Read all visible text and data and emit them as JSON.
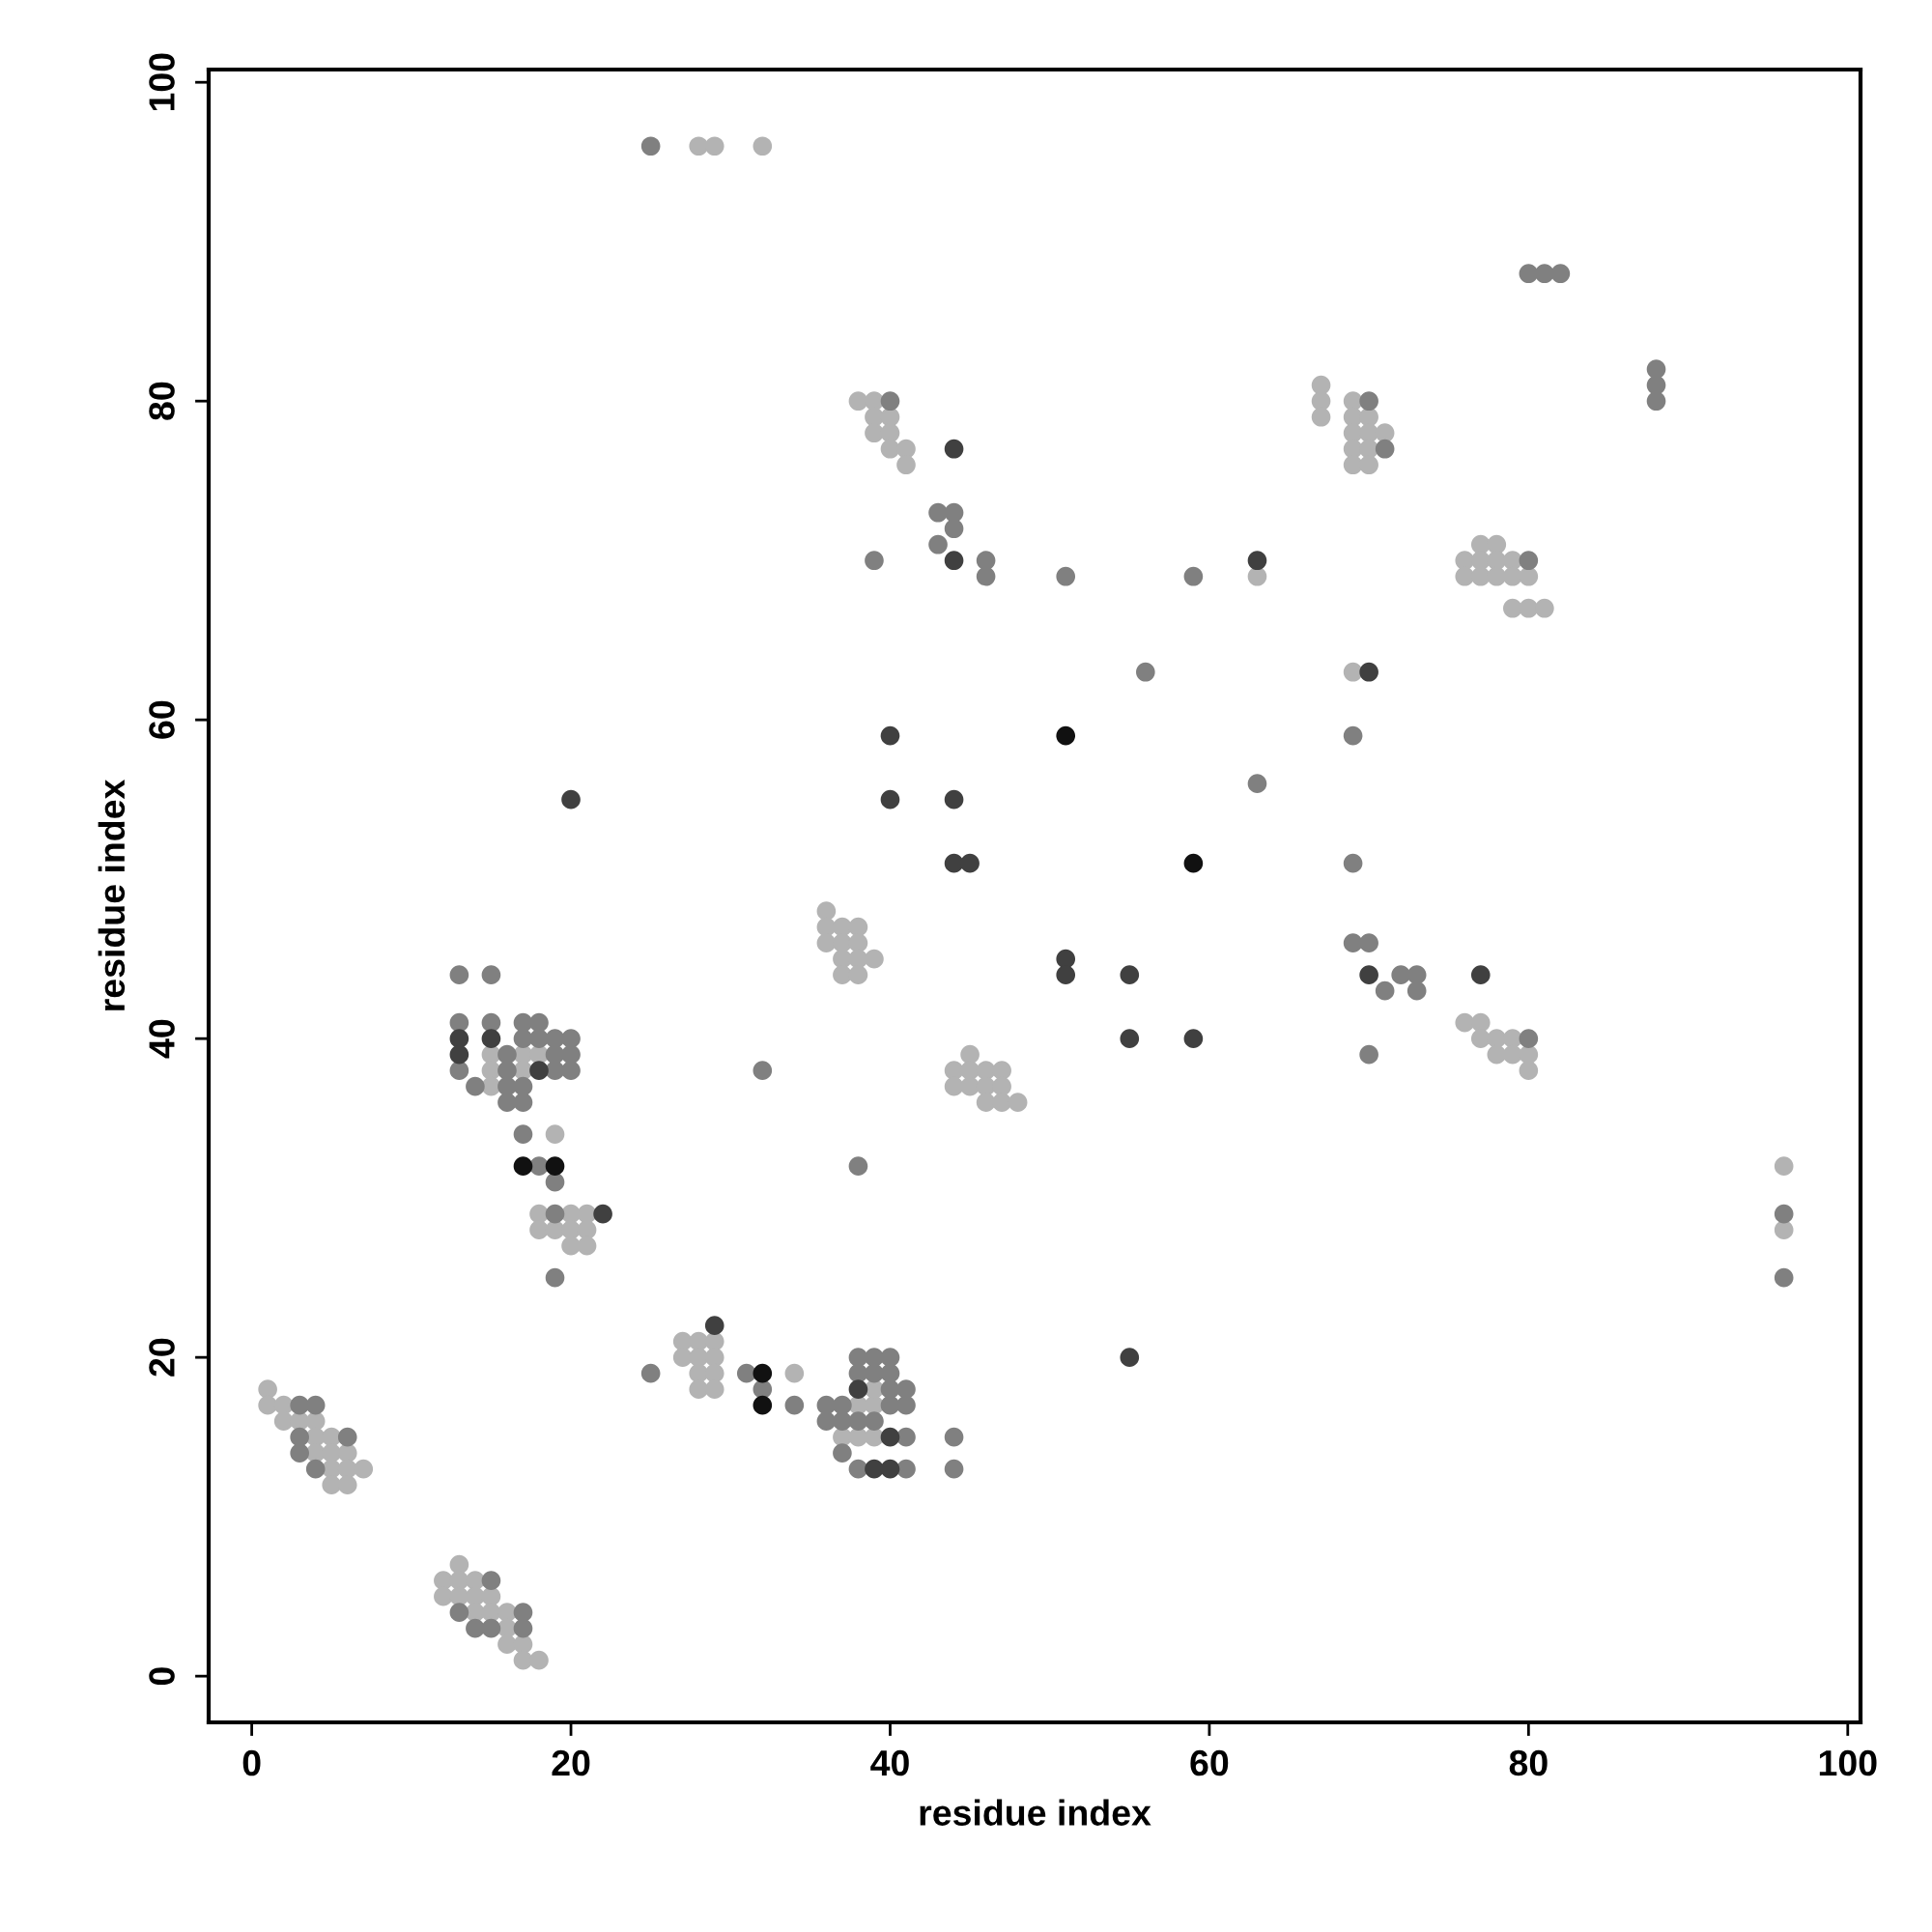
{
  "chart_data": {
    "type": "scatter",
    "xlabel": "residue index",
    "ylabel": "residue index",
    "xlim": [
      -2.7,
      100.8
    ],
    "ylim": [
      -2.9,
      100.8
    ],
    "xticks": [
      0,
      20,
      40,
      60,
      80,
      100
    ],
    "yticks": [
      0,
      20,
      40,
      60,
      80,
      100
    ],
    "grid": false,
    "legend": false,
    "marker": "circle",
    "series": [
      {
        "color": "#b3b3b3",
        "x": [
          1,
          1,
          2,
          2,
          3,
          4,
          4,
          5,
          4,
          5,
          6,
          5,
          6,
          7,
          5,
          6,
          13,
          12,
          13,
          14,
          12,
          13,
          14,
          15,
          14,
          15,
          16,
          16,
          16,
          17,
          17,
          18,
          15,
          17,
          18,
          15,
          17,
          15,
          19,
          18,
          20,
          21,
          18,
          19,
          20,
          21,
          20,
          21,
          36,
          36,
          37,
          38,
          36,
          37,
          38,
          37,
          38,
          39,
          37,
          38,
          45,
          44,
          45,
          46,
          47,
          44,
          45,
          46,
          47,
          46,
          47,
          48,
          27,
          28,
          29,
          27,
          28,
          29,
          28,
          29,
          34,
          28,
          29,
          38,
          39,
          39,
          37,
          38,
          39,
          38,
          39,
          39,
          40,
          39,
          40,
          40,
          41,
          41,
          63,
          67,
          67,
          67,
          69,
          69,
          70,
          69,
          70,
          71,
          69,
          70,
          69,
          70,
          77,
          78,
          76,
          77,
          78,
          79,
          76,
          77,
          78,
          79,
          80,
          79,
          80,
          81,
          69,
          76,
          77,
          77,
          78,
          79,
          78,
          79,
          80,
          80,
          28,
          29,
          32,
          96,
          96
        ],
        "values": [
          18,
          17,
          17,
          16,
          16,
          16,
          15,
          15,
          14,
          14,
          14,
          13,
          13,
          13,
          12,
          12,
          7,
          6,
          6,
          6,
          5,
          5,
          5,
          5,
          4,
          4,
          4,
          3,
          2,
          2,
          1,
          1,
          39,
          39,
          39,
          38,
          38,
          37,
          34,
          29,
          29,
          29,
          28,
          28,
          28,
          28,
          27,
          27,
          48,
          47,
          47,
          47,
          46,
          46,
          46,
          45,
          45,
          45,
          44,
          44,
          39,
          38,
          38,
          38,
          38,
          37,
          37,
          37,
          37,
          36,
          36,
          36,
          21,
          21,
          21,
          20,
          20,
          20,
          19,
          19,
          19,
          18,
          18,
          17,
          17,
          18,
          15,
          15,
          15,
          80,
          80,
          79,
          79,
          78,
          78,
          77,
          77,
          76,
          69,
          81,
          80,
          79,
          80,
          79,
          79,
          78,
          78,
          78,
          77,
          77,
          76,
          76,
          71,
          71,
          70,
          70,
          70,
          70,
          69,
          69,
          69,
          69,
          69,
          67,
          67,
          67,
          63,
          41,
          41,
          40,
          40,
          40,
          39,
          39,
          39,
          38,
          96,
          96,
          96,
          32,
          28
        ]
      },
      {
        "color": "#808080",
        "x": [
          3,
          4,
          3,
          6,
          3,
          4,
          15,
          13,
          17,
          14,
          15,
          17,
          13,
          15,
          13,
          15,
          17,
          18,
          17,
          18,
          19,
          20,
          16,
          19,
          20,
          13,
          16,
          19,
          20,
          14,
          16,
          17,
          16,
          17,
          17,
          18,
          19,
          19,
          19,
          32,
          38,
          25,
          31,
          32,
          34,
          38,
          39,
          40,
          38,
          39,
          40,
          40,
          41,
          36,
          37,
          40,
          41,
          36,
          37,
          38,
          39,
          41,
          44,
          37,
          38,
          41,
          44,
          40,
          43,
          44,
          44,
          43,
          39,
          46,
          46,
          51,
          59,
          56,
          63,
          70,
          71,
          80,
          69,
          69,
          69,
          70,
          72,
          73,
          71,
          73,
          70,
          80,
          80,
          81,
          82,
          88,
          88,
          88,
          25,
          96,
          96
        ],
        "values": [
          17,
          17,
          15,
          15,
          14,
          13,
          6,
          4,
          4,
          3,
          3,
          3,
          44,
          44,
          41,
          41,
          41,
          41,
          40,
          40,
          40,
          40,
          39,
          39,
          39,
          38,
          38,
          38,
          38,
          37,
          37,
          37,
          36,
          36,
          34,
          32,
          31,
          29,
          25,
          38,
          32,
          19,
          19,
          18,
          17,
          20,
          20,
          20,
          19,
          19,
          19,
          18,
          18,
          17,
          17,
          17,
          17,
          16,
          16,
          16,
          16,
          15,
          15,
          14,
          13,
          13,
          13,
          80,
          73,
          73,
          72,
          71,
          70,
          70,
          69,
          69,
          69,
          63,
          56,
          80,
          77,
          70,
          59,
          51,
          46,
          46,
          44,
          44,
          43,
          43,
          39,
          40,
          88,
          88,
          88,
          82,
          81,
          80,
          96,
          29,
          25
        ]
      },
      {
        "color": "#404040",
        "x": [
          13,
          15,
          13,
          18,
          22,
          20,
          29,
          38,
          40,
          39,
          40,
          55,
          44,
          44,
          63,
          40,
          40,
          44,
          44,
          45,
          51,
          51,
          55,
          55,
          59,
          70,
          70,
          77
        ],
        "values": [
          40,
          40,
          39,
          38,
          29,
          55,
          22,
          18,
          15,
          13,
          13,
          20,
          77,
          70,
          70,
          59,
          55,
          55,
          51,
          51,
          45,
          44,
          44,
          40,
          40,
          63,
          44,
          44
        ]
      },
      {
        "color": "#111111",
        "x": [
          17,
          19,
          32,
          32,
          51,
          59
        ],
        "values": [
          32,
          32,
          19,
          17,
          59,
          51
        ]
      }
    ]
  }
}
